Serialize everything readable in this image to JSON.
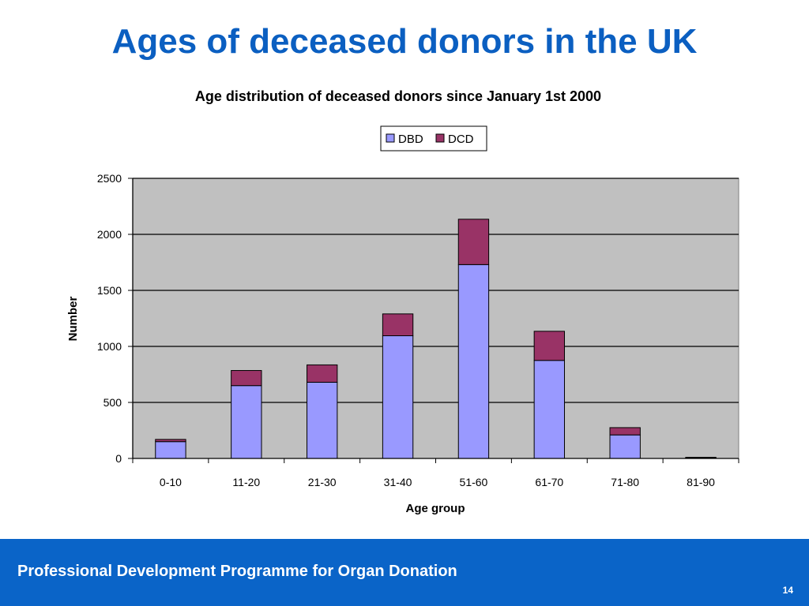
{
  "slide": {
    "title": "Ages of deceased donors in the UK"
  },
  "footer": {
    "text": "Professional Development Programme for Organ Donation",
    "page_number": "14"
  },
  "colors": {
    "title": "#0b5fc1",
    "footer_bg": "#0a64c8",
    "plot_bg": "#c0c0c0",
    "dbd": "#9999ff",
    "dcd": "#993366"
  },
  "chart_data": {
    "type": "bar",
    "stacked": true,
    "title": "Age distribution of deceased donors since January 1st 2000",
    "xlabel": "Age group",
    "ylabel": "Number",
    "ylim": [
      0,
      2500
    ],
    "yticks": [
      0,
      500,
      1000,
      1500,
      2000,
      2500
    ],
    "grid": true,
    "legend_position": "top-center",
    "categories": [
      "0-10",
      "11-20",
      "21-30",
      "31-40",
      "51-60",
      "61-70",
      "71-80",
      "81-90"
    ],
    "series": [
      {
        "name": "DBD",
        "color": "#9999ff",
        "values": [
          150,
          650,
          680,
          1095,
          1730,
          875,
          210,
          5
        ]
      },
      {
        "name": "DCD",
        "color": "#993366",
        "values": [
          20,
          135,
          155,
          195,
          405,
          260,
          65,
          5
        ]
      }
    ]
  }
}
